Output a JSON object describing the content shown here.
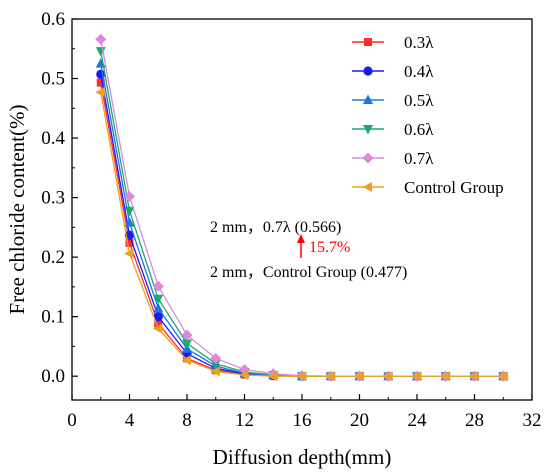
{
  "chart_data": {
    "type": "line",
    "xlabel": "Diffusion depth(mm)",
    "ylabel": "Free chloride content(%)",
    "xlim": [
      0,
      32
    ],
    "ylim": [
      -0.04,
      0.6
    ],
    "x_ticks": [
      0,
      4,
      8,
      12,
      16,
      20,
      24,
      28,
      32
    ],
    "y_ticks": [
      0.0,
      0.1,
      0.2,
      0.3,
      0.4,
      0.5,
      0.6
    ],
    "x_tick_labels": [
      "0",
      "4",
      "8",
      "12",
      "16",
      "20",
      "24",
      "28",
      "32"
    ],
    "y_tick_labels": [
      "0.0",
      "0.1",
      "0.2",
      "0.3",
      "0.4",
      "0.5",
      "0.6"
    ],
    "grid": false,
    "legend_position": "top-right",
    "x": [
      2,
      4,
      6,
      8,
      10,
      12,
      14,
      16,
      18,
      20,
      22,
      24,
      26,
      28,
      30
    ],
    "series": [
      {
        "name": "0.3λ",
        "marker": "square",
        "color": "#ff2a2a",
        "values": [
          0.493,
          0.224,
          0.088,
          0.03,
          0.01,
          0.003,
          0.001,
          0.0,
          0.0,
          0.0,
          0.0,
          0.0,
          0.0,
          0.0,
          0.0
        ]
      },
      {
        "name": "0.4λ",
        "marker": "circle",
        "color": "#1a1aff",
        "values": [
          0.507,
          0.237,
          0.1,
          0.038,
          0.013,
          0.004,
          0.001,
          0.0,
          0.0,
          0.0,
          0.0,
          0.0,
          0.0,
          0.0,
          0.0
        ]
      },
      {
        "name": "0.5λ",
        "marker": "triangle-up",
        "color": "#1a78e0",
        "values": [
          0.525,
          0.258,
          0.114,
          0.046,
          0.017,
          0.005,
          0.002,
          0.0,
          0.0,
          0.0,
          0.0,
          0.0,
          0.0,
          0.0,
          0.0
        ]
      },
      {
        "name": "0.6λ",
        "marker": "triangle-down",
        "color": "#1aaa6a",
        "values": [
          0.546,
          0.278,
          0.13,
          0.055,
          0.021,
          0.007,
          0.002,
          0.0,
          0.0,
          0.0,
          0.0,
          0.0,
          0.0,
          0.0,
          0.0
        ]
      },
      {
        "name": "0.7λ",
        "marker": "diamond",
        "color": "#d98ad9",
        "values": [
          0.566,
          0.302,
          0.151,
          0.069,
          0.03,
          0.011,
          0.004,
          0.001,
          0.0,
          0.0,
          0.0,
          0.0,
          0.0,
          0.0,
          0.0
        ]
      },
      {
        "name": "Control Group",
        "marker": "triangle-left",
        "color": "#f0a020",
        "values": [
          0.477,
          0.206,
          0.08,
          0.027,
          0.008,
          0.002,
          0.0,
          0.0,
          0.0,
          0.0,
          0.0,
          0.0,
          0.0,
          0.0,
          0.0
        ]
      }
    ],
    "annotations": {
      "line1": "2 mm，0.7λ (0.566)",
      "increase": "15.7%",
      "line2": "2 mm，Control Group (0.477)",
      "increase_color": "#ff0000"
    }
  }
}
